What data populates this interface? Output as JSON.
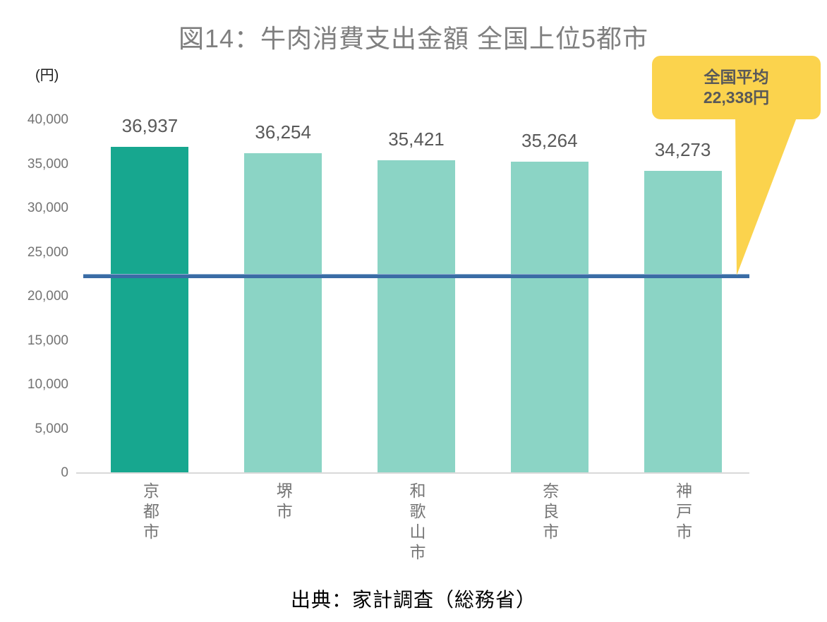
{
  "title": "図14：牛肉消費支出金額 全国上位5都市",
  "unit_label": "(円)",
  "source": "出典：家計調査（総務省）",
  "average_callout": {
    "line1": "全国平均",
    "line2": "22,338円"
  },
  "chart_data": {
    "type": "bar",
    "title": "図14：牛肉消費支出金額 全国上位5都市",
    "xlabel": "",
    "ylabel": "(円)",
    "categories": [
      "京都市",
      "堺市",
      "和歌山市",
      "奈良市",
      "神戸市"
    ],
    "values": [
      36937,
      36254,
      35421,
      35264,
      34273
    ],
    "value_labels": [
      "36,937",
      "36,254",
      "35,421",
      "35,264",
      "34,273"
    ],
    "highlight_index": 0,
    "ylim": [
      0,
      40000
    ],
    "ytick_step": 5000,
    "ytick_labels": [
      "0",
      "5,000",
      "10,000",
      "15,000",
      "20,000",
      "25,000",
      "30,000",
      "35,000",
      "40,000"
    ],
    "average_line": {
      "value": 22338,
      "label": "全国平均 22,338円"
    },
    "grid": false,
    "legend": "none",
    "source_note": "出典：家計調査（総務省）"
  },
  "colors": {
    "bar_highlight": "#17A78F",
    "bar_normal": "#8BD4C5",
    "average_line": "#3A6CA5",
    "callout_bg": "#FBD34D",
    "callout_text": "#595959",
    "title_text": "#7F7F7F",
    "axis_text": "#737373",
    "category_text": "#757575",
    "value_text": "#595959",
    "unit_text": "#1A1A1A",
    "baseline": "#D9D9D9",
    "source_text": "#000000"
  }
}
